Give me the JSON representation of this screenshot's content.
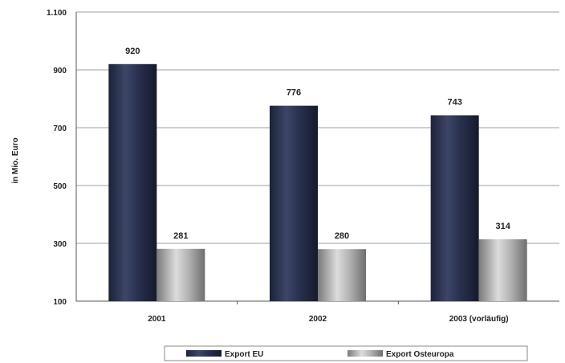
{
  "chart_data": {
    "type": "bar",
    "ylabel": "in Mio. Euro",
    "ylim": [
      100,
      1100
    ],
    "yticks": [
      "1.100",
      "900",
      "700",
      "500",
      "300",
      "100"
    ],
    "ytick_values": [
      1100,
      900,
      700,
      500,
      300,
      100
    ],
    "categories": [
      "2001",
      "2002",
      "2003 (vorläufig)"
    ],
    "series": [
      {
        "name": "Export EU",
        "values": [
          920,
          776,
          743
        ],
        "labels": [
          "920",
          "776",
          "743"
        ],
        "color": "#2b3350"
      },
      {
        "name": "Export Osteuropa",
        "values": [
          281,
          280,
          314
        ],
        "labels": [
          "281",
          "280",
          "314"
        ],
        "color": "#9a9a9a"
      }
    ],
    "grid": true,
    "legend_position": "bottom"
  }
}
